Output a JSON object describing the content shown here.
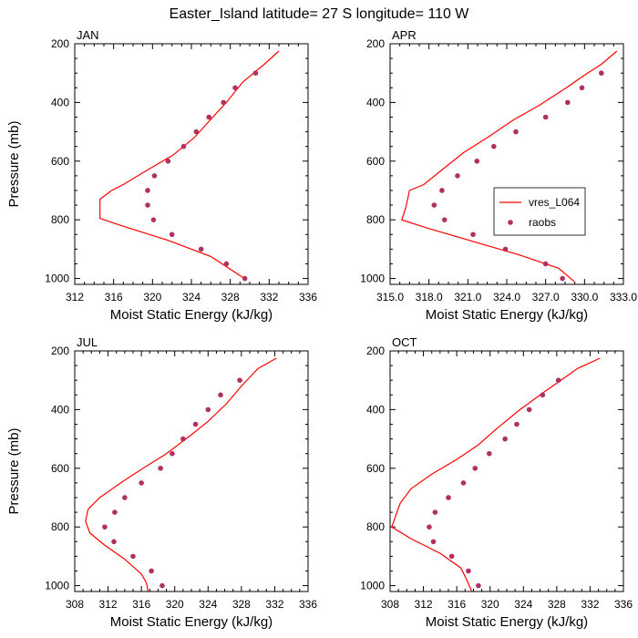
{
  "figure": {
    "title": "Easter_Island  latitude= 27 S longitude= 110 W"
  },
  "legend": {
    "panel": 1,
    "position": "center-right",
    "entries": [
      {
        "label": "vres_L064",
        "kind": "line",
        "color": "#ff0000"
      },
      {
        "label": "raobs",
        "kind": "marker",
        "color": "#b03060"
      }
    ]
  },
  "colors": {
    "model_line": "#ff0000",
    "obs_marker": "#b03060"
  },
  "chart_data": [
    {
      "type": "scatter",
      "panel_label": "JAN",
      "xlabel": "Moist Static Energy (kJ/kg)",
      "ylabel": "Pressure (mb)",
      "xlim": [
        312,
        336
      ],
      "ylim": [
        1020,
        200
      ],
      "x_ticks": [
        312,
        316,
        320,
        324,
        328,
        332,
        336
      ],
      "x_tick_labels": [
        "312",
        "316",
        "320",
        "324",
        "328",
        "332",
        "336"
      ],
      "y_ticks": [
        200,
        400,
        600,
        800,
        1000
      ],
      "y_tick_labels": [
        "200",
        "400",
        "600",
        "800",
        "1000"
      ],
      "series": [
        {
          "name": "vres_L064",
          "style": "line",
          "x": [
            333.0,
            331.5,
            329.3,
            327.6,
            326.2,
            324.3,
            322.1,
            319.5,
            317.0,
            315.8,
            314.6,
            314.6,
            316.8,
            321.6,
            326.0,
            329.7
          ],
          "y": [
            225,
            270,
            330,
            400,
            450,
            520,
            580,
            630,
            680,
            700,
            730,
            795,
            820,
            870,
            925,
            1005
          ]
        },
        {
          "name": "raobs",
          "style": "marker",
          "x": [
            330.6,
            328.5,
            327.3,
            325.8,
            324.5,
            323.2,
            321.6,
            320.2,
            319.5,
            319.5,
            320.1,
            322.0,
            325.0,
            327.6,
            329.5
          ],
          "y": [
            300,
            350,
            400,
            450,
            500,
            550,
            600,
            650,
            700,
            750,
            800,
            850,
            900,
            950,
            1000
          ]
        }
      ]
    },
    {
      "type": "scatter",
      "panel_label": "APR",
      "xlabel": "Moist Static Energy (kJ/kg)",
      "ylabel": "",
      "xlim": [
        315.0,
        333.0
      ],
      "ylim": [
        1020,
        200
      ],
      "x_ticks": [
        315,
        318,
        321,
        324,
        327,
        330,
        333
      ],
      "x_tick_labels": [
        "315.0",
        "318.0",
        "321.0",
        "324.0",
        "327.0",
        "330.0",
        "333.0"
      ],
      "y_ticks": [
        200,
        400,
        600,
        800,
        1000
      ],
      "y_tick_labels": [
        "200",
        "400",
        "600",
        "800",
        "1000"
      ],
      "series": [
        {
          "name": "vres_L064",
          "style": "line",
          "x": [
            332.5,
            331.3,
            329.9,
            328.6,
            326.5,
            324.5,
            322.5,
            320.7,
            319.0,
            317.6,
            316.5,
            316.2,
            315.9,
            318.0,
            321.5,
            325.0,
            328.0,
            329.2
          ],
          "y": [
            225,
            270,
            310,
            350,
            410,
            460,
            520,
            570,
            630,
            680,
            700,
            760,
            800,
            830,
            875,
            920,
            965,
            1010
          ]
        },
        {
          "name": "raobs",
          "style": "marker",
          "x": [
            331.3,
            329.8,
            328.7,
            327.0,
            324.7,
            323.0,
            321.7,
            320.2,
            319.0,
            318.4,
            319.2,
            321.4,
            323.9,
            327.0,
            328.3
          ],
          "y": [
            300,
            350,
            400,
            450,
            500,
            550,
            600,
            650,
            700,
            750,
            800,
            850,
            900,
            950,
            1000
          ]
        }
      ]
    },
    {
      "type": "scatter",
      "panel_label": "JUL",
      "xlabel": "Moist Static Energy (kJ/kg)",
      "ylabel": "Pressure (mb)",
      "xlim": [
        308,
        336
      ],
      "ylim": [
        1020,
        200
      ],
      "x_ticks": [
        308,
        312,
        316,
        320,
        324,
        328,
        332,
        336
      ],
      "x_tick_labels": [
        "308",
        "312",
        "316",
        "320",
        "324",
        "328",
        "332",
        "336"
      ],
      "y_ticks": [
        200,
        400,
        600,
        800,
        1000
      ],
      "y_tick_labels": [
        "200",
        "400",
        "600",
        "800",
        "1000"
      ],
      "series": [
        {
          "name": "vres_L064",
          "style": "line",
          "x": [
            332.2,
            330.0,
            328.0,
            326.2,
            324.0,
            321.8,
            319.0,
            316.2,
            313.5,
            311.0,
            309.6,
            309.3,
            309.8,
            311.5,
            314.0,
            316.0,
            316.6,
            316.8
          ],
          "y": [
            225,
            260,
            320,
            380,
            440,
            490,
            550,
            600,
            650,
            700,
            740,
            780,
            820,
            860,
            910,
            960,
            990,
            1020
          ]
        },
        {
          "name": "raobs",
          "style": "marker",
          "x": [
            327.8,
            325.5,
            324.0,
            322.5,
            321.0,
            319.7,
            318.3,
            316.0,
            314.0,
            312.8,
            311.6,
            312.7,
            315.0,
            317.2,
            318.5
          ],
          "y": [
            300,
            350,
            400,
            450,
            500,
            550,
            600,
            650,
            700,
            750,
            800,
            850,
            900,
            950,
            1000
          ]
        }
      ]
    },
    {
      "type": "scatter",
      "panel_label": "OCT",
      "xlabel": "Moist Static Energy (kJ/kg)",
      "ylabel": "",
      "xlim": [
        308,
        336
      ],
      "ylim": [
        1020,
        200
      ],
      "x_ticks": [
        308,
        312,
        316,
        320,
        324,
        328,
        332,
        336
      ],
      "x_tick_labels": [
        "308",
        "312",
        "316",
        "320",
        "324",
        "328",
        "332",
        "336"
      ],
      "y_ticks": [
        200,
        400,
        600,
        800,
        1000
      ],
      "y_tick_labels": [
        "200",
        "400",
        "600",
        "800",
        "1000"
      ],
      "series": [
        {
          "name": "vres_L064",
          "style": "line",
          "x": [
            333.2,
            330.5,
            328.5,
            326.0,
            323.6,
            321.0,
            318.6,
            316.0,
            313.0,
            310.5,
            309.2,
            308.2,
            310.5,
            314.0,
            316.5,
            317.2,
            317.8
          ],
          "y": [
            225,
            260,
            300,
            350,
            400,
            460,
            520,
            570,
            620,
            670,
            720,
            800,
            840,
            890,
            940,
            980,
            1020
          ]
        },
        {
          "name": "raobs",
          "style": "marker",
          "x": [
            328.2,
            326.3,
            324.7,
            323.2,
            321.8,
            319.9,
            318.2,
            316.8,
            315.0,
            313.4,
            312.7,
            313.2,
            315.4,
            317.4,
            318.6
          ],
          "y": [
            300,
            350,
            400,
            450,
            500,
            550,
            600,
            650,
            700,
            750,
            800,
            850,
            900,
            950,
            1000
          ]
        }
      ]
    }
  ]
}
